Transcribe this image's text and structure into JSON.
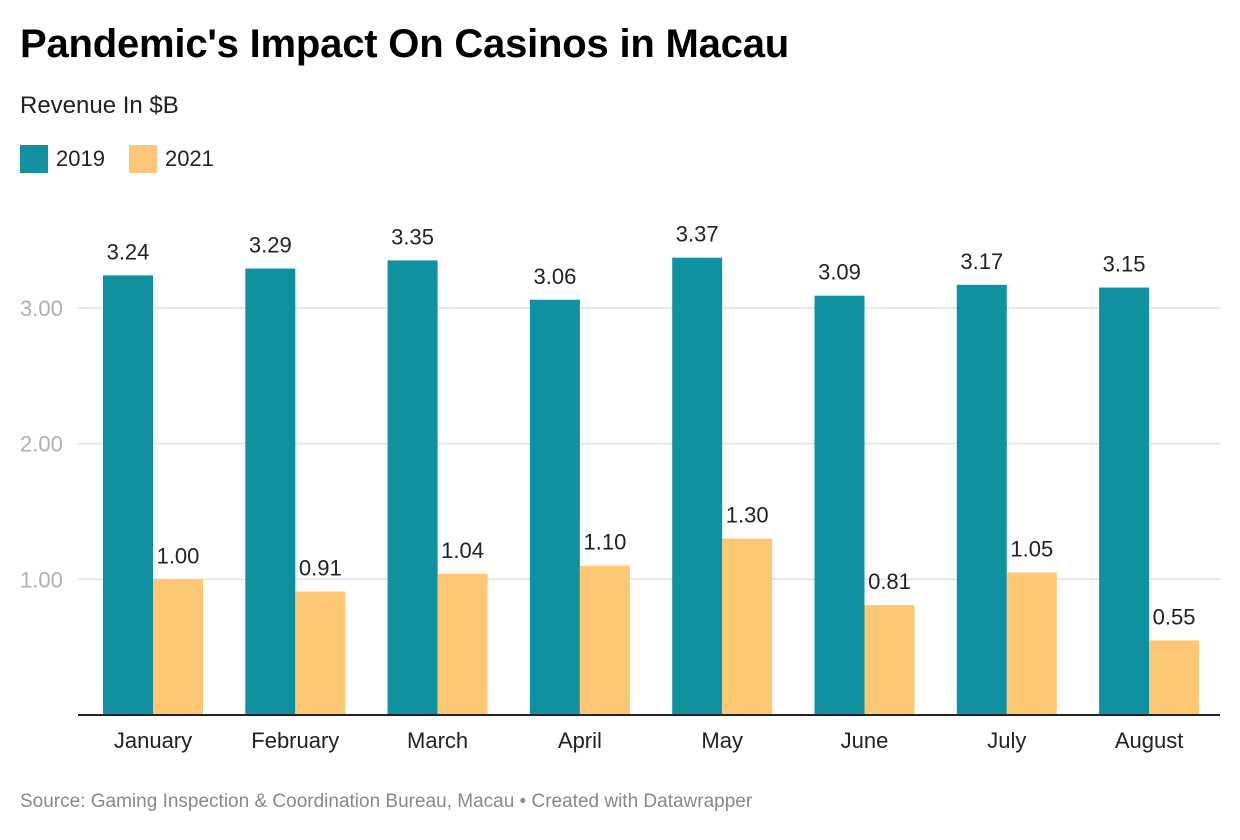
{
  "header": {
    "title": "Pandemic's Impact On Casinos in Macau",
    "subtitle": "Revenue In $B"
  },
  "legend": [
    {
      "label": "2019",
      "color": "#0f91a0"
    },
    {
      "label": "2021",
      "color": "#fdc774"
    }
  ],
  "footer": {
    "source": "Source: Gaming Inspection & Coordination Bureau, Macau • Created with Datawrapper"
  },
  "chart_data": {
    "type": "bar",
    "title": "Pandemic's Impact On Casinos in Macau",
    "subtitle": "Revenue In $B",
    "xlabel": "",
    "ylabel": "",
    "categories": [
      "January",
      "February",
      "March",
      "April",
      "May",
      "June",
      "July",
      "August"
    ],
    "series": [
      {
        "name": "2019",
        "color": "#0f91a0",
        "values": [
          3.24,
          3.29,
          3.35,
          3.06,
          3.37,
          3.09,
          3.17,
          3.15
        ]
      },
      {
        "name": "2021",
        "color": "#fdc774",
        "values": [
          1.0,
          0.91,
          1.04,
          1.1,
          1.3,
          0.81,
          1.05,
          0.55
        ]
      }
    ],
    "data_labels": [
      [
        "3.24",
        "3.29",
        "3.35",
        "3.06",
        "3.37",
        "3.09",
        "3.17",
        "3.15"
      ],
      [
        "1.00",
        "0.91",
        "1.04",
        "1.10",
        "1.30",
        "0.81",
        "1.05",
        "0.55"
      ]
    ],
    "yticks": [
      1,
      2,
      3
    ],
    "ytick_labels": [
      "1.00",
      "2.00",
      "3.00"
    ],
    "ylim": [
      0,
      3.5
    ],
    "grid": true,
    "legend_position": "top-left"
  }
}
